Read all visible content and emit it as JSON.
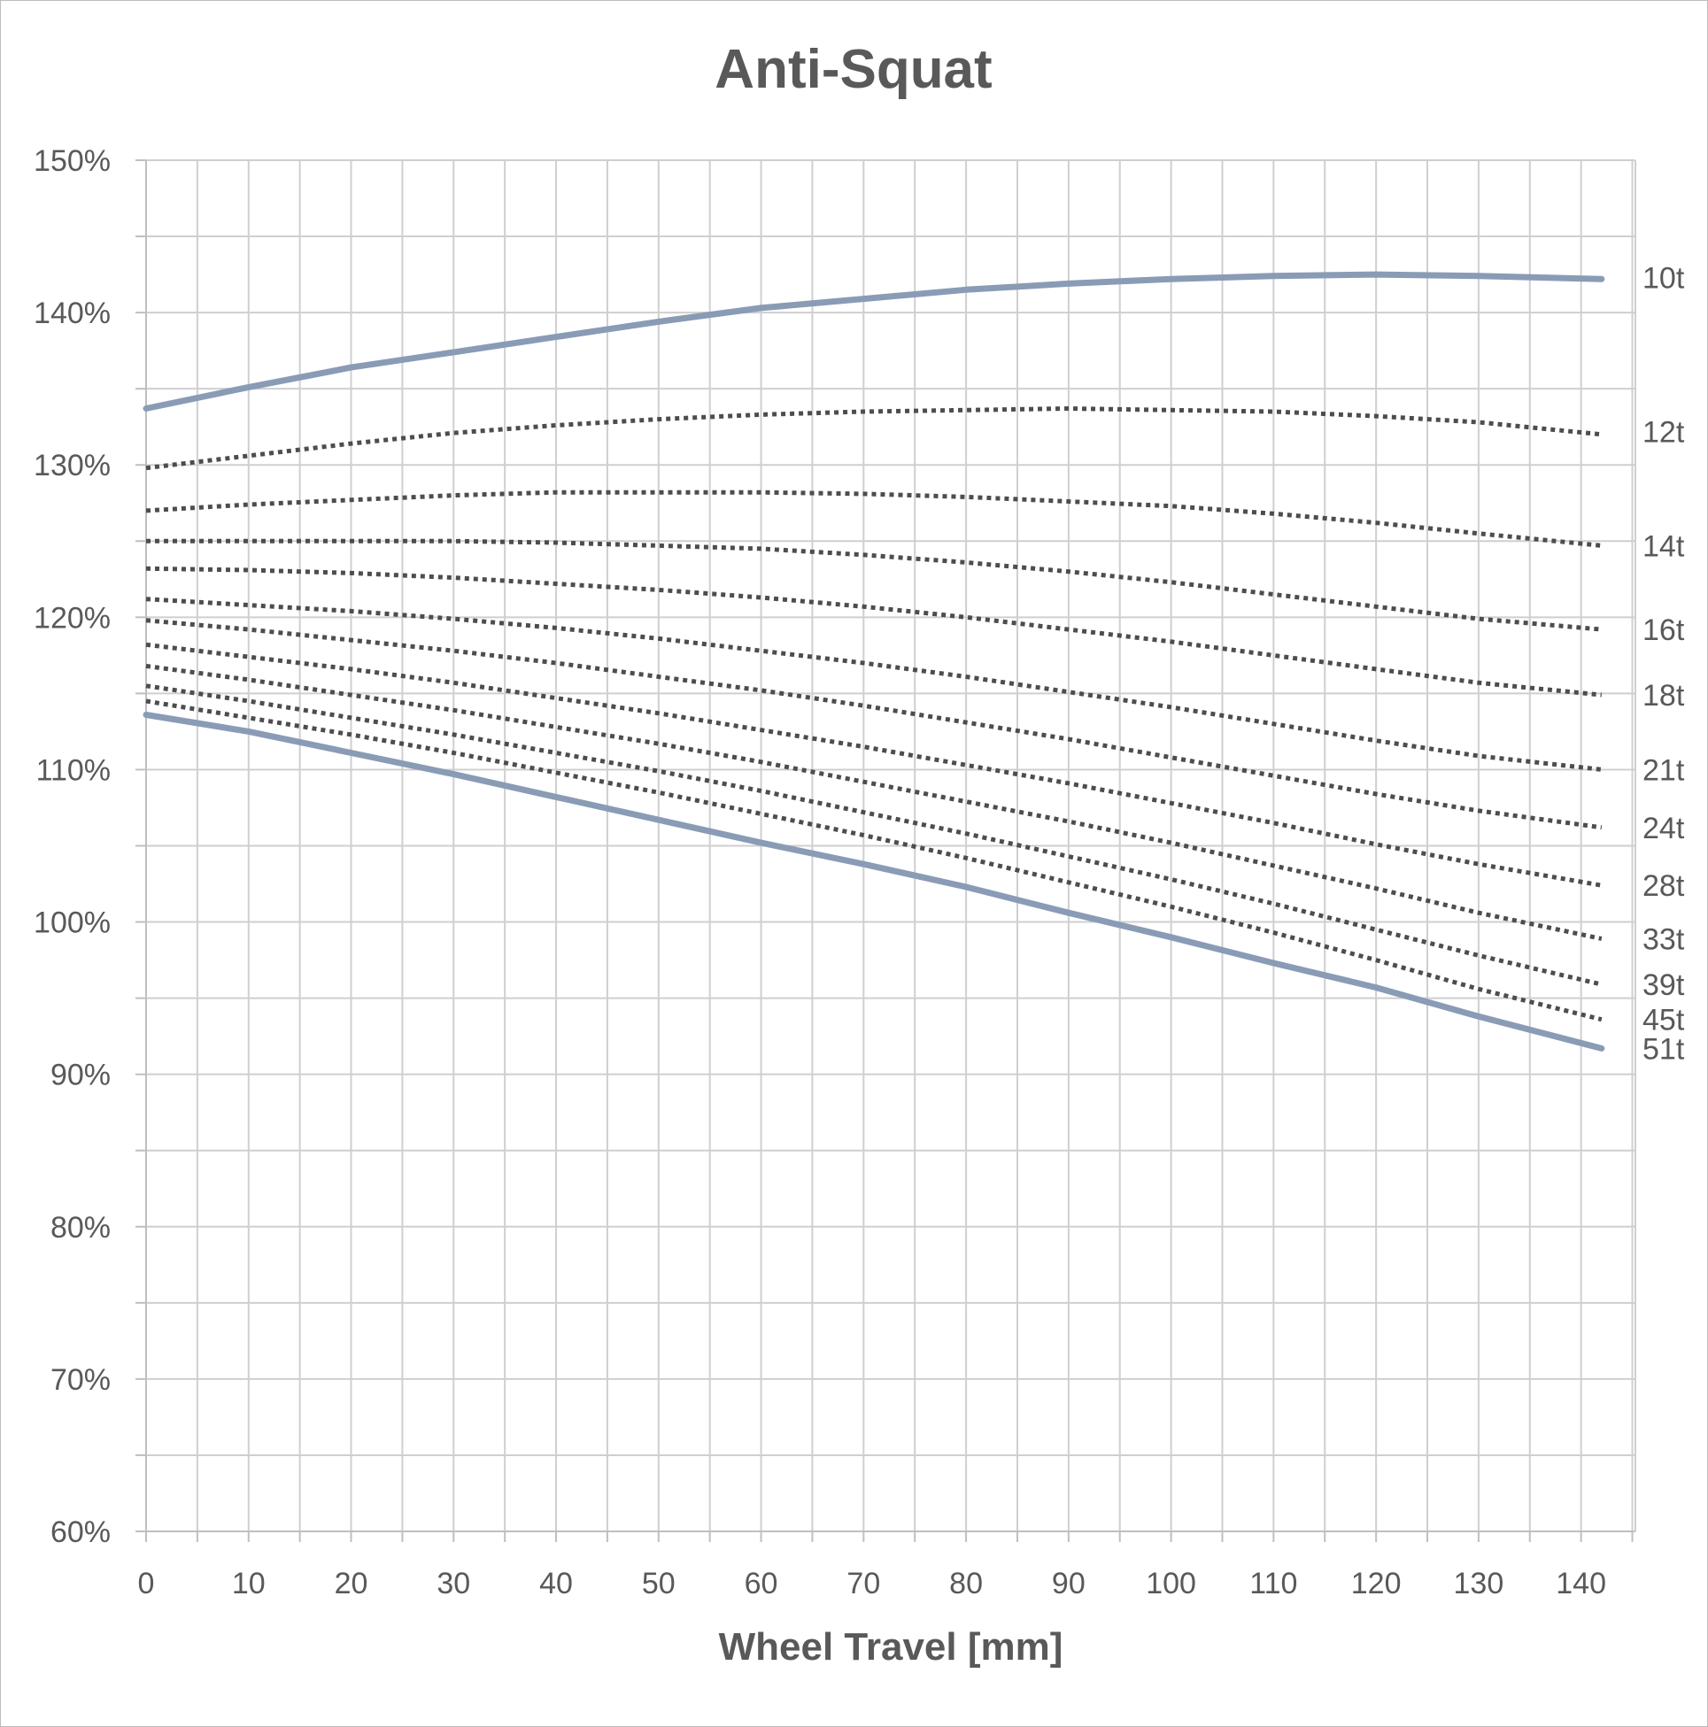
{
  "chart_data": {
    "type": "line",
    "title": "Anti-Squat",
    "xlabel": "Wheel Travel [mm]",
    "ylabel": "",
    "xlim": [
      0,
      145
    ],
    "ylim": [
      60,
      150
    ],
    "xticks": [
      0,
      10,
      20,
      30,
      40,
      50,
      60,
      70,
      80,
      90,
      100,
      110,
      120,
      130,
      140
    ],
    "xtick_labels": [
      "0",
      "10",
      "20",
      "30",
      "40",
      "50",
      "60",
      "70",
      "80",
      "90",
      "100",
      "110",
      "120",
      "130",
      "140"
    ],
    "yticks": [
      60,
      70,
      80,
      90,
      100,
      110,
      120,
      130,
      140,
      150
    ],
    "ytick_labels": [
      "60%",
      "70%",
      "80%",
      "90%",
      "100%",
      "110%",
      "120%",
      "130%",
      "140%",
      "150%"
    ],
    "grid": true,
    "legend": "direct labels at right end of each line",
    "x": [
      0,
      10,
      20,
      30,
      40,
      50,
      60,
      70,
      80,
      90,
      100,
      110,
      120,
      130,
      142
    ],
    "series": [
      {
        "name": "10t",
        "style": "solid",
        "color": "#8a9bb5",
        "label_y": 142.3,
        "values": [
          133.7,
          135.1,
          136.4,
          137.4,
          138.4,
          139.4,
          140.3,
          140.9,
          141.5,
          141.9,
          142.2,
          142.4,
          142.5,
          142.4,
          142.2
        ]
      },
      {
        "name": "12t",
        "style": "dotted",
        "color": "#4d4d4d",
        "label_y": 132.2,
        "values": [
          129.8,
          130.6,
          131.4,
          132.1,
          132.6,
          133.0,
          133.3,
          133.5,
          133.6,
          133.7,
          133.6,
          133.5,
          133.2,
          132.8,
          132.0
        ]
      },
      {
        "name": "14t",
        "style": "dotted",
        "color": "#4d4d4d",
        "label_y": 124.7,
        "values": [
          127.0,
          127.4,
          127.7,
          128.0,
          128.2,
          128.2,
          128.2,
          128.1,
          127.9,
          127.6,
          127.3,
          126.8,
          126.2,
          125.5,
          124.7
        ]
      },
      {
        "name": "16t",
        "style": "dotted",
        "color": "#4d4d4d",
        "label_y": 119.2,
        "values": [
          125.0,
          125.0,
          125.0,
          125.0,
          124.9,
          124.7,
          124.5,
          124.1,
          123.6,
          123.0,
          122.3,
          121.5,
          120.7,
          119.9,
          119.2
        ]
      },
      {
        "name": "18t",
        "style": "dotted",
        "color": "#4d4d4d",
        "label_y": 114.9,
        "values": [
          123.2,
          123.1,
          122.9,
          122.6,
          122.2,
          121.8,
          121.3,
          120.7,
          120.0,
          119.2,
          118.4,
          117.5,
          116.6,
          115.7,
          114.9
        ]
      },
      {
        "name": "21t",
        "style": "dotted",
        "color": "#4d4d4d",
        "label_y": 110.0,
        "values": [
          121.2,
          120.8,
          120.4,
          119.9,
          119.3,
          118.6,
          117.8,
          117.0,
          116.1,
          115.1,
          114.1,
          113.0,
          111.9,
          110.9,
          110.0
        ]
      },
      {
        "name": "24t",
        "style": "dotted",
        "color": "#4d4d4d",
        "label_y": 106.2,
        "values": [
          119.8,
          119.2,
          118.5,
          117.8,
          117.0,
          116.1,
          115.2,
          114.2,
          113.1,
          112.0,
          110.8,
          109.6,
          108.4,
          107.3,
          106.2
        ]
      },
      {
        "name": "28t",
        "style": "dotted",
        "color": "#4d4d4d",
        "label_y": 102.4,
        "values": [
          118.2,
          117.4,
          116.6,
          115.7,
          114.7,
          113.7,
          112.6,
          111.5,
          110.3,
          109.1,
          107.8,
          106.5,
          105.1,
          103.8,
          102.4
        ]
      },
      {
        "name": "33t",
        "style": "dotted",
        "color": "#4d4d4d",
        "label_y": 98.9,
        "values": [
          116.8,
          115.9,
          114.9,
          113.9,
          112.8,
          111.7,
          110.5,
          109.2,
          107.9,
          106.6,
          105.2,
          103.7,
          102.2,
          100.6,
          98.9
        ]
      },
      {
        "name": "39t",
        "style": "dotted",
        "color": "#4d4d4d",
        "label_y": 95.9,
        "values": [
          115.5,
          114.5,
          113.4,
          112.3,
          111.1,
          109.9,
          108.6,
          107.2,
          105.8,
          104.3,
          102.8,
          101.2,
          99.5,
          97.8,
          95.9
        ]
      },
      {
        "name": "45t",
        "style": "dotted",
        "color": "#4d4d4d",
        "label_y": 93.6,
        "values": [
          114.5,
          113.4,
          112.3,
          111.1,
          109.8,
          108.5,
          107.1,
          105.7,
          104.2,
          102.6,
          101.0,
          99.3,
          97.5,
          95.6,
          93.6
        ]
      },
      {
        "name": "51t",
        "style": "solid",
        "color": "#8a9bb5",
        "label_y": 91.7,
        "values": [
          113.6,
          112.5,
          111.1,
          109.7,
          108.2,
          106.7,
          105.2,
          103.8,
          102.3,
          100.6,
          99.0,
          97.3,
          95.7,
          93.8,
          91.7
        ]
      }
    ]
  }
}
